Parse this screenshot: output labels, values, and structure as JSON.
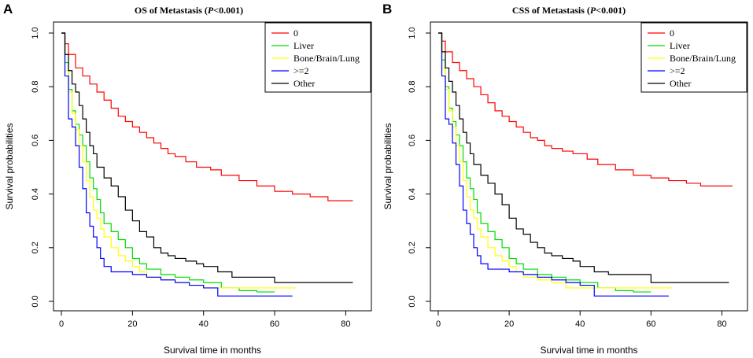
{
  "figure": {
    "panels": [
      "A",
      "B"
    ]
  },
  "chart_data": [
    {
      "type": "line",
      "panel_label": "A",
      "title_prefix": "OS of Metastasis (",
      "title_p": "P",
      "title_suffix": "<0.001)",
      "xlabel": "Survival time in months",
      "ylabel": "Survival probabilities",
      "xlim": [
        0,
        85
      ],
      "ylim": [
        0,
        1.0
      ],
      "xticks": [
        0,
        20,
        40,
        60,
        80
      ],
      "yticks": [
        0.0,
        0.2,
        0.4,
        0.6,
        0.8,
        1.0
      ],
      "xtick_labels": [
        "0",
        "20",
        "40",
        "60",
        "80"
      ],
      "ytick_labels": [
        "0.0",
        "0.2",
        "0.4",
        "0.6",
        "0.8",
        "1.0"
      ],
      "legend_position": "top-right",
      "series": [
        {
          "name": "0",
          "color": "#ff0000",
          "x": [
            0,
            1,
            2,
            4,
            6,
            8,
            10,
            12,
            14,
            16,
            18,
            20,
            22,
            24,
            26,
            28,
            30,
            32,
            35,
            38,
            42,
            45,
            50,
            55,
            60,
            65,
            70,
            75,
            78,
            82
          ],
          "y": [
            1.0,
            0.96,
            0.92,
            0.87,
            0.84,
            0.81,
            0.78,
            0.75,
            0.72,
            0.69,
            0.67,
            0.65,
            0.63,
            0.61,
            0.59,
            0.57,
            0.55,
            0.54,
            0.52,
            0.5,
            0.49,
            0.47,
            0.45,
            0.43,
            0.41,
            0.4,
            0.39,
            0.375,
            0.375,
            0.375
          ]
        },
        {
          "name": "Liver",
          "color": "#00dd00",
          "x": [
            0,
            1,
            2,
            3,
            4,
            5,
            6,
            7,
            8,
            9,
            10,
            11,
            12,
            14,
            16,
            18,
            20,
            22,
            24,
            28,
            32,
            36,
            40,
            45,
            50,
            55,
            60
          ],
          "y": [
            1.0,
            0.89,
            0.79,
            0.71,
            0.66,
            0.62,
            0.58,
            0.52,
            0.46,
            0.42,
            0.38,
            0.33,
            0.29,
            0.26,
            0.23,
            0.2,
            0.16,
            0.14,
            0.12,
            0.1,
            0.09,
            0.08,
            0.07,
            0.05,
            0.04,
            0.035,
            0.035
          ]
        },
        {
          "name": "Bone/Brain/Lung",
          "color": "#ffff00",
          "x": [
            0,
            1,
            2,
            3,
            4,
            5,
            6,
            7,
            8,
            9,
            10,
            11,
            12,
            14,
            16,
            18,
            20,
            22,
            24,
            28,
            32,
            36,
            40,
            45,
            50,
            55,
            60,
            66
          ],
          "y": [
            1.0,
            0.86,
            0.78,
            0.7,
            0.64,
            0.58,
            0.52,
            0.45,
            0.39,
            0.34,
            0.31,
            0.27,
            0.24,
            0.2,
            0.17,
            0.15,
            0.13,
            0.11,
            0.09,
            0.08,
            0.07,
            0.06,
            0.05,
            0.05,
            0.05,
            0.05,
            0.05,
            0.05
          ]
        },
        {
          "name": ">=2",
          "color": "#0000ff",
          "x": [
            0,
            1,
            2,
            3,
            4,
            5,
            6,
            7,
            8,
            9,
            10,
            11,
            12,
            14,
            16,
            18,
            20,
            24,
            28,
            32,
            36,
            40,
            44,
            50,
            55,
            60,
            65
          ],
          "y": [
            1.0,
            0.84,
            0.68,
            0.65,
            0.58,
            0.5,
            0.42,
            0.33,
            0.28,
            0.24,
            0.2,
            0.16,
            0.13,
            0.11,
            0.11,
            0.11,
            0.1,
            0.09,
            0.08,
            0.07,
            0.06,
            0.05,
            0.02,
            0.02,
            0.02,
            0.02,
            0.02
          ]
        },
        {
          "name": "Other",
          "color": "#000000",
          "x": [
            0,
            1,
            2,
            3,
            4,
            5,
            6,
            7,
            8,
            9,
            10,
            12,
            14,
            16,
            18,
            20,
            22,
            24,
            26,
            28,
            30,
            32,
            35,
            38,
            40,
            44,
            48,
            52,
            56,
            60,
            70,
            82
          ],
          "y": [
            1.0,
            0.92,
            0.86,
            0.81,
            0.78,
            0.73,
            0.68,
            0.63,
            0.58,
            0.55,
            0.5,
            0.46,
            0.43,
            0.39,
            0.34,
            0.3,
            0.26,
            0.24,
            0.2,
            0.18,
            0.17,
            0.16,
            0.15,
            0.14,
            0.13,
            0.11,
            0.09,
            0.09,
            0.09,
            0.07,
            0.07,
            0.07
          ]
        }
      ]
    },
    {
      "type": "line",
      "panel_label": "B",
      "title_prefix": "CSS of Metastasis  (",
      "title_p": "P",
      "title_suffix": "<0.001)",
      "xlabel": "Survival time in months",
      "ylabel": "Survival probabilities",
      "xlim": [
        0,
        85
      ],
      "ylim": [
        0,
        1.0
      ],
      "xticks": [
        0,
        20,
        40,
        60,
        80
      ],
      "yticks": [
        0.0,
        0.2,
        0.4,
        0.6,
        0.8,
        1.0
      ],
      "xtick_labels": [
        "0",
        "20",
        "40",
        "60",
        "80"
      ],
      "ytick_labels": [
        "0.0",
        "0.2",
        "0.4",
        "0.6",
        "0.8",
        "1.0"
      ],
      "legend_position": "top-right",
      "series": [
        {
          "name": "0",
          "color": "#ff0000",
          "x": [
            0,
            1,
            2,
            4,
            6,
            8,
            10,
            12,
            14,
            16,
            18,
            20,
            22,
            24,
            26,
            28,
            30,
            32,
            35,
            38,
            42,
            45,
            50,
            55,
            60,
            65,
            70,
            74,
            78,
            83
          ],
          "y": [
            1.0,
            0.97,
            0.93,
            0.89,
            0.86,
            0.83,
            0.8,
            0.77,
            0.74,
            0.71,
            0.69,
            0.67,
            0.65,
            0.63,
            0.61,
            0.6,
            0.58,
            0.57,
            0.56,
            0.55,
            0.53,
            0.51,
            0.49,
            0.47,
            0.46,
            0.45,
            0.44,
            0.43,
            0.43,
            0.43
          ]
        },
        {
          "name": "Liver",
          "color": "#00dd00",
          "x": [
            0,
            1,
            2,
            3,
            4,
            5,
            6,
            7,
            8,
            9,
            10,
            11,
            12,
            14,
            16,
            18,
            20,
            22,
            24,
            28,
            32,
            36,
            40,
            45,
            50,
            55,
            60
          ],
          "y": [
            1.0,
            0.9,
            0.8,
            0.72,
            0.67,
            0.62,
            0.58,
            0.52,
            0.46,
            0.42,
            0.38,
            0.33,
            0.29,
            0.26,
            0.23,
            0.2,
            0.16,
            0.14,
            0.12,
            0.1,
            0.09,
            0.08,
            0.07,
            0.05,
            0.04,
            0.035,
            0.035
          ]
        },
        {
          "name": "Bone/Brain/Lung",
          "color": "#ffff00",
          "x": [
            0,
            1,
            2,
            3,
            4,
            5,
            6,
            7,
            8,
            9,
            10,
            11,
            12,
            14,
            16,
            18,
            20,
            22,
            24,
            28,
            32,
            36,
            40,
            45,
            50,
            55,
            60,
            66
          ],
          "y": [
            1.0,
            0.87,
            0.79,
            0.71,
            0.65,
            0.58,
            0.52,
            0.45,
            0.39,
            0.34,
            0.31,
            0.27,
            0.24,
            0.2,
            0.17,
            0.15,
            0.13,
            0.11,
            0.09,
            0.08,
            0.07,
            0.05,
            0.05,
            0.05,
            0.05,
            0.05,
            0.05,
            0.05
          ]
        },
        {
          "name": ">=2",
          "color": "#0000ff",
          "x": [
            0,
            1,
            2,
            3,
            4,
            5,
            6,
            7,
            8,
            9,
            10,
            11,
            12,
            14,
            16,
            18,
            20,
            24,
            28,
            32,
            36,
            40,
            44,
            50,
            55,
            60,
            65
          ],
          "y": [
            1.0,
            0.84,
            0.68,
            0.66,
            0.59,
            0.51,
            0.43,
            0.34,
            0.29,
            0.25,
            0.2,
            0.17,
            0.14,
            0.12,
            0.12,
            0.12,
            0.11,
            0.1,
            0.09,
            0.08,
            0.07,
            0.06,
            0.02,
            0.02,
            0.02,
            0.02,
            0.02
          ]
        },
        {
          "name": "Other",
          "color": "#000000",
          "x": [
            0,
            1,
            2,
            3,
            4,
            5,
            6,
            7,
            8,
            9,
            10,
            12,
            14,
            16,
            18,
            20,
            22,
            24,
            26,
            28,
            30,
            32,
            35,
            38,
            40,
            44,
            48,
            52,
            56,
            60,
            70,
            82
          ],
          "y": [
            1.0,
            0.93,
            0.87,
            0.82,
            0.78,
            0.73,
            0.68,
            0.63,
            0.59,
            0.55,
            0.51,
            0.47,
            0.44,
            0.4,
            0.36,
            0.31,
            0.27,
            0.25,
            0.22,
            0.2,
            0.18,
            0.17,
            0.16,
            0.15,
            0.13,
            0.11,
            0.1,
            0.1,
            0.1,
            0.07,
            0.07,
            0.07
          ]
        }
      ]
    }
  ]
}
